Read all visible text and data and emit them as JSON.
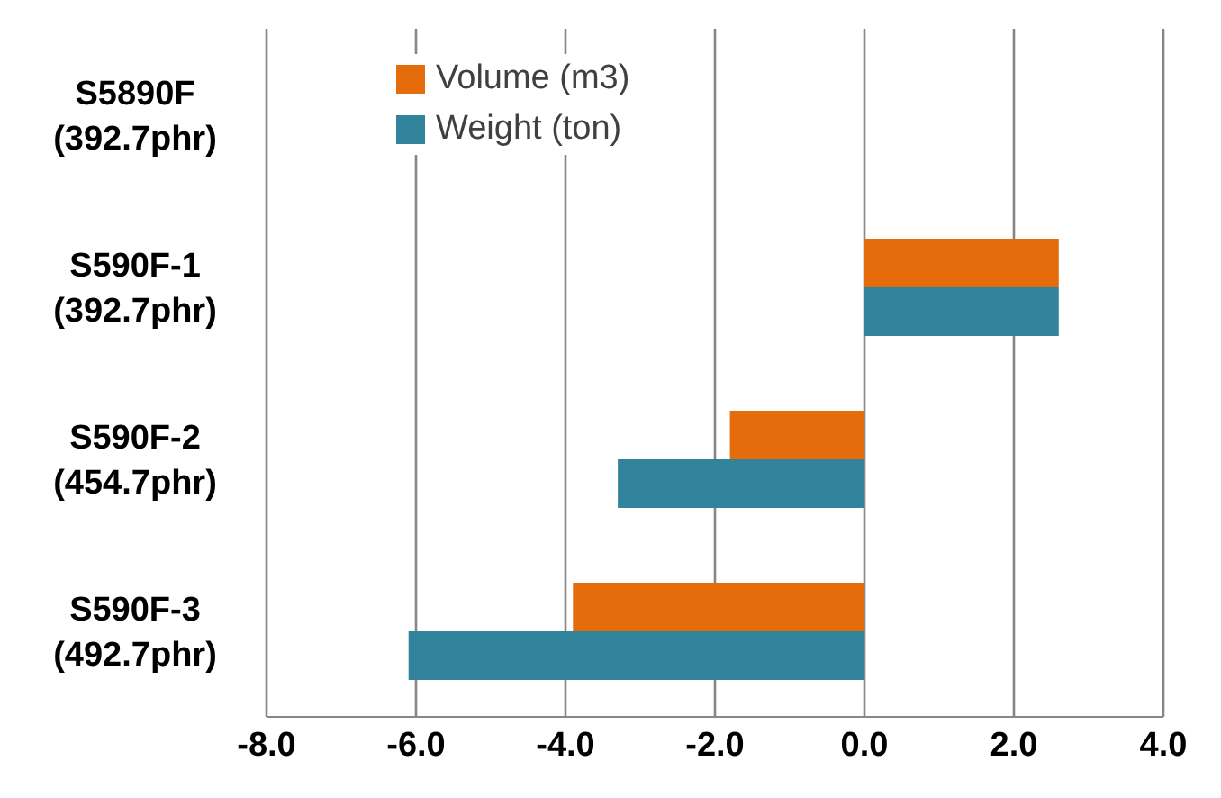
{
  "chart_data": {
    "type": "bar",
    "orientation": "horizontal",
    "categories": [
      "S5890F (392.7phr)",
      "S590F-1 (392.7phr)",
      "S590F-2 (454.7phr)",
      "S590F-3 (492.7phr)"
    ],
    "series": [
      {
        "name": "Volume (m3)",
        "color": "#e46c0a",
        "values": [
          null,
          2.6,
          -1.8,
          -3.9
        ]
      },
      {
        "name": "Weight (ton)",
        "color": "#31849b",
        "values": [
          null,
          2.6,
          -3.3,
          -6.1
        ]
      }
    ],
    "xlim": [
      -8,
      4
    ],
    "xticks": [
      {
        "value": -8,
        "label": "-8.0"
      },
      {
        "value": -6,
        "label": "-6.0"
      },
      {
        "value": -4,
        "label": "-4.0"
      },
      {
        "value": -2,
        "label": "-2.0"
      },
      {
        "value": 0,
        "label": "0.0"
      },
      {
        "value": 2,
        "label": "2.0"
      },
      {
        "value": 4,
        "label": "4.0"
      }
    ],
    "grid": "x",
    "legend": "top left"
  }
}
